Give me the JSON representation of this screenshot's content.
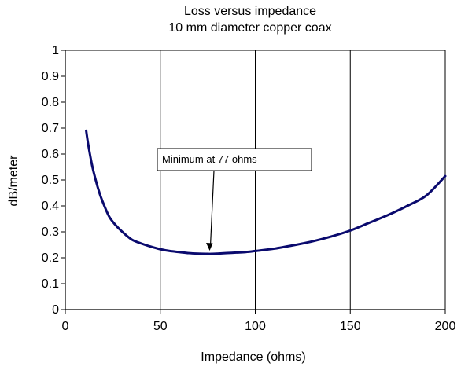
{
  "chart_data": {
    "type": "line",
    "title": "Loss versus impedance",
    "subtitle": "10 mm diameter copper coax",
    "xlabel": "Impedance (ohms)",
    "ylabel": "dB/meter",
    "xlim": [
      0,
      200
    ],
    "ylim": [
      0,
      1
    ],
    "x_ticks": [
      0,
      50,
      100,
      150,
      200
    ],
    "y_ticks": [
      0,
      0.1,
      0.2,
      0.3,
      0.4,
      0.5,
      0.6,
      0.7,
      0.8,
      0.9,
      1
    ],
    "grid": "vertical lines at x ticks, horizontal top line only",
    "series": [
      {
        "color": "#0a0a6e",
        "x": [
          11,
          12,
          14,
          16,
          18,
          20,
          23,
          26,
          30,
          35,
          40,
          45,
          50,
          55,
          60,
          65,
          70,
          75,
          77,
          80,
          85,
          90,
          95,
          100,
          110,
          120,
          130,
          140,
          150,
          160,
          170,
          180,
          190,
          200
        ],
        "y": [
          0.69,
          0.64,
          0.56,
          0.5,
          0.45,
          0.41,
          0.36,
          0.33,
          0.3,
          0.27,
          0.255,
          0.243,
          0.233,
          0.226,
          0.222,
          0.218,
          0.216,
          0.215,
          0.215,
          0.216,
          0.218,
          0.22,
          0.222,
          0.226,
          0.235,
          0.248,
          0.263,
          0.282,
          0.305,
          0.335,
          0.365,
          0.4,
          0.44,
          0.515
        ]
      }
    ],
    "annotations": [
      {
        "text": "Minimum at 77 ohms",
        "x": 76,
        "y": 0.215
      }
    ]
  }
}
